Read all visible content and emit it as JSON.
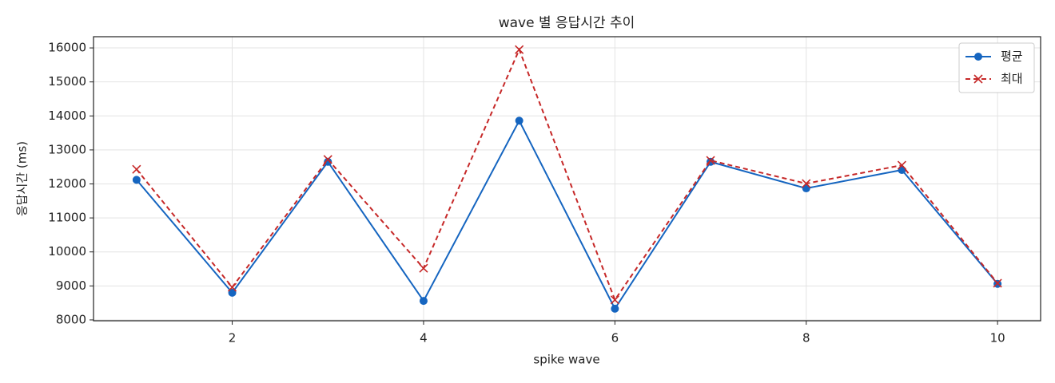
{
  "chart_data": {
    "type": "line",
    "title": "wave 별 응답시간 추이",
    "x_label": "spike wave",
    "y_label": "응답시간 (ms)",
    "x": [
      1,
      2,
      3,
      4,
      5,
      6,
      7,
      8,
      9,
      10
    ],
    "series": [
      {
        "name": "평균",
        "color": "#1565c0",
        "marker": "o",
        "linestyle": "solid",
        "values": [
          12120,
          8800,
          12650,
          8560,
          13860,
          8330,
          12650,
          11870,
          12410,
          9060
        ]
      },
      {
        "name": "최대",
        "color": "#c62828",
        "marker": "x",
        "linestyle": "dashed",
        "values": [
          12430,
          8960,
          12720,
          9520,
          15950,
          8590,
          12690,
          12010,
          12550,
          9080
        ]
      }
    ],
    "xlim": [
      0.55,
      10.45
    ],
    "xticks": [
      2,
      4,
      6,
      8,
      10
    ],
    "ylim": [
      7975,
      16330
    ],
    "yticks": [
      8000,
      9000,
      10000,
      11000,
      12000,
      13000,
      14000,
      15000,
      16000
    ],
    "grid": true,
    "legend": "upper right"
  }
}
